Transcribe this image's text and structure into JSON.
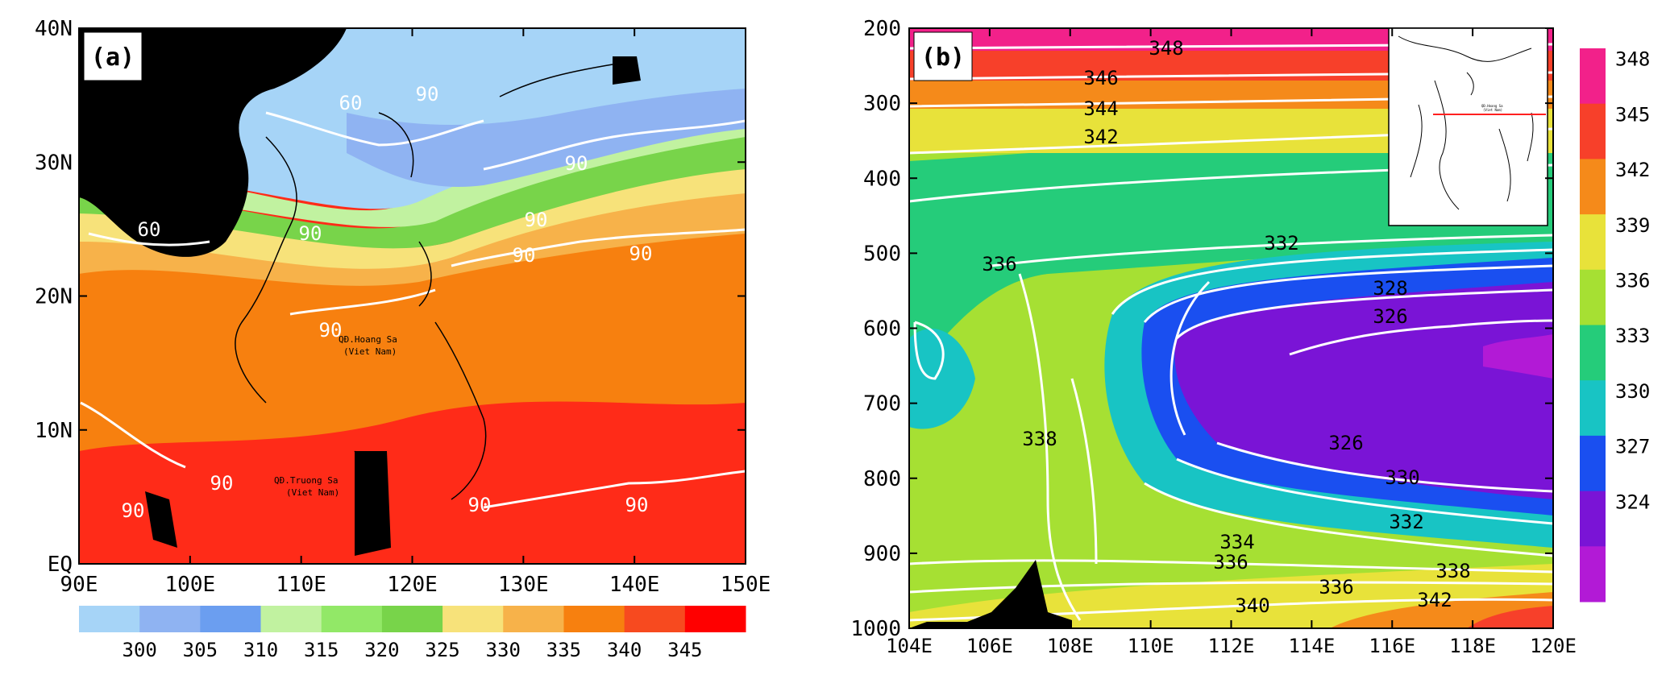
{
  "chart_data": [
    {
      "type": "heatmap",
      "panel_label": "(a)",
      "x_ticks": [
        "90E",
        "100E",
        "110E",
        "120E",
        "130E",
        "140E",
        "150E"
      ],
      "y_ticks": [
        "EQ",
        "10N",
        "20N",
        "30N",
        "40N"
      ],
      "xlim": [
        90,
        150
      ],
      "ylim": [
        0,
        40
      ],
      "colorbar": {
        "orientation": "horizontal",
        "labels": [
          "300",
          "305",
          "310",
          "315",
          "320",
          "325",
          "330",
          "335",
          "340",
          "345"
        ],
        "colors": [
          "#a6d4f7",
          "#8fb3f2",
          "#6b9ef0",
          "#c1f2a0",
          "#92e867",
          "#78d44a",
          "#f7e27a",
          "#f7b24a",
          "#f7800f",
          "#f74a1f",
          "#ff0000"
        ]
      },
      "contour_labels": [
        "60",
        "90",
        "90",
        "90",
        "60",
        "90",
        "90",
        "90",
        "90",
        "90",
        "90",
        "90",
        "90"
      ],
      "map_annotations": [
        "QĐ.Hoang Sa",
        "(Viet Nam)",
        "QĐ.Truong Sa",
        "(Viet Nam)"
      ]
    },
    {
      "type": "heatmap",
      "panel_label": "(b)",
      "x_ticks": [
        "104E",
        "106E",
        "108E",
        "110E",
        "112E",
        "114E",
        "116E",
        "118E",
        "120E"
      ],
      "y_ticks": [
        "200",
        "300",
        "400",
        "500",
        "600",
        "700",
        "800",
        "900",
        "1000"
      ],
      "xlim": [
        104,
        120
      ],
      "ylim": [
        1000,
        200
      ],
      "colorbar": {
        "orientation": "vertical",
        "labels": [
          "348",
          "345",
          "342",
          "339",
          "336",
          "333",
          "330",
          "327",
          "324"
        ],
        "colors": [
          "#f2218a",
          "#f7402a",
          "#f58a1a",
          "#e8e23a",
          "#a6e033",
          "#25cc7a",
          "#18c4c4",
          "#1a4ff0",
          "#7a14d6",
          "#b21ad6"
        ]
      },
      "contour_labels": [
        "348",
        "346",
        "344",
        "342",
        "336",
        "332",
        "328",
        "326",
        "338",
        "326",
        "330",
        "332",
        "334",
        "336",
        "338",
        "336",
        "340",
        "342"
      ],
      "inset_caption": [
        "QĐ.Hoang Sa",
        "(Viet Nam)"
      ]
    }
  ]
}
